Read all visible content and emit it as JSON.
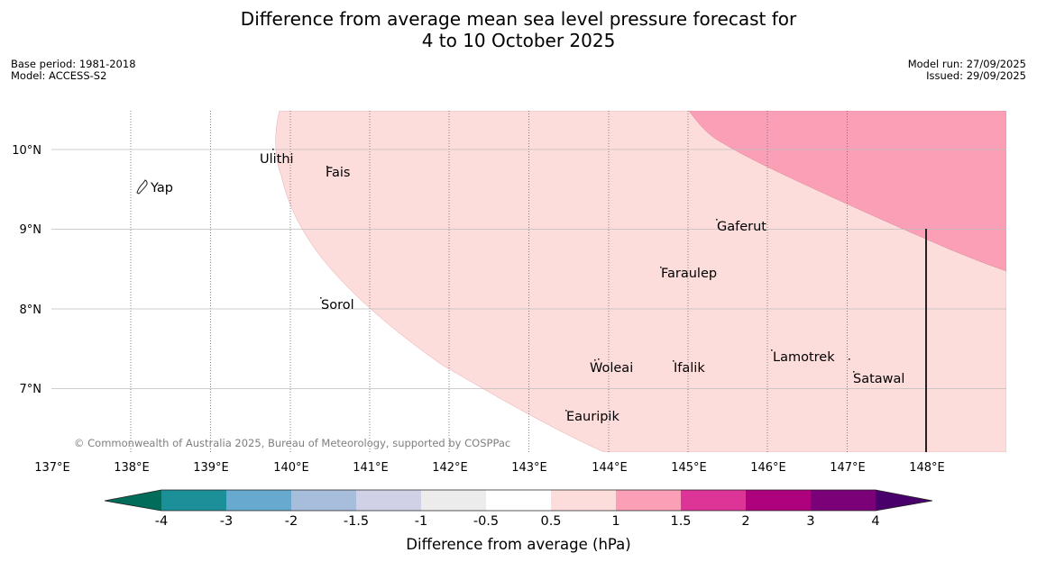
{
  "title": {
    "line1": "Difference from average mean sea level pressure forecast for",
    "line2": "4 to 10 October 2025"
  },
  "meta": {
    "base_period": "Base period: 1981-2018",
    "model": "Model: ACCESS-S2",
    "model_run": "Model run: 27/09/2025",
    "issued": "Issued: 29/09/2025"
  },
  "map": {
    "lon_labels": [
      "137°E",
      "138°E",
      "139°E",
      "140°E",
      "141°E",
      "142°E",
      "143°E",
      "144°E",
      "145°E",
      "146°E",
      "147°E",
      "148°E"
    ],
    "lat_labels": [
      "10°N",
      "9°N",
      "8°N",
      "7°N"
    ],
    "places": [
      "Ulithi",
      "Fais",
      "Yap",
      "Gaferut",
      "Faraulep",
      "Sorol",
      "Lamotrek",
      "Woleai",
      "Ifalik",
      "Satawal",
      "Eauripik"
    ],
    "copyright": "© Commonwealth of Australia 2025, Bureau of Meteorology, supported by COSPPac"
  },
  "colorbar": {
    "ticks": [
      "-4",
      "-3",
      "-2",
      "-1.5",
      "-1",
      "-0.5",
      "0.5",
      "1",
      "1.5",
      "2",
      "3",
      "4"
    ],
    "label": "Difference from average (hPa)",
    "colors": {
      "below": "#016c59",
      "bins": [
        "#1c9099",
        "#67a9cf",
        "#a6bddb",
        "#d0d1e6",
        "#ececec",
        "#ffffff",
        "#fddddb",
        "#fa9fb5",
        "#dd3497",
        "#ae017e",
        "#7a0177"
      ],
      "above": "#49006a"
    }
  },
  "legend_colors": {
    "light_pink": "#fddddb",
    "medium_pink": "#fa9fb5"
  }
}
